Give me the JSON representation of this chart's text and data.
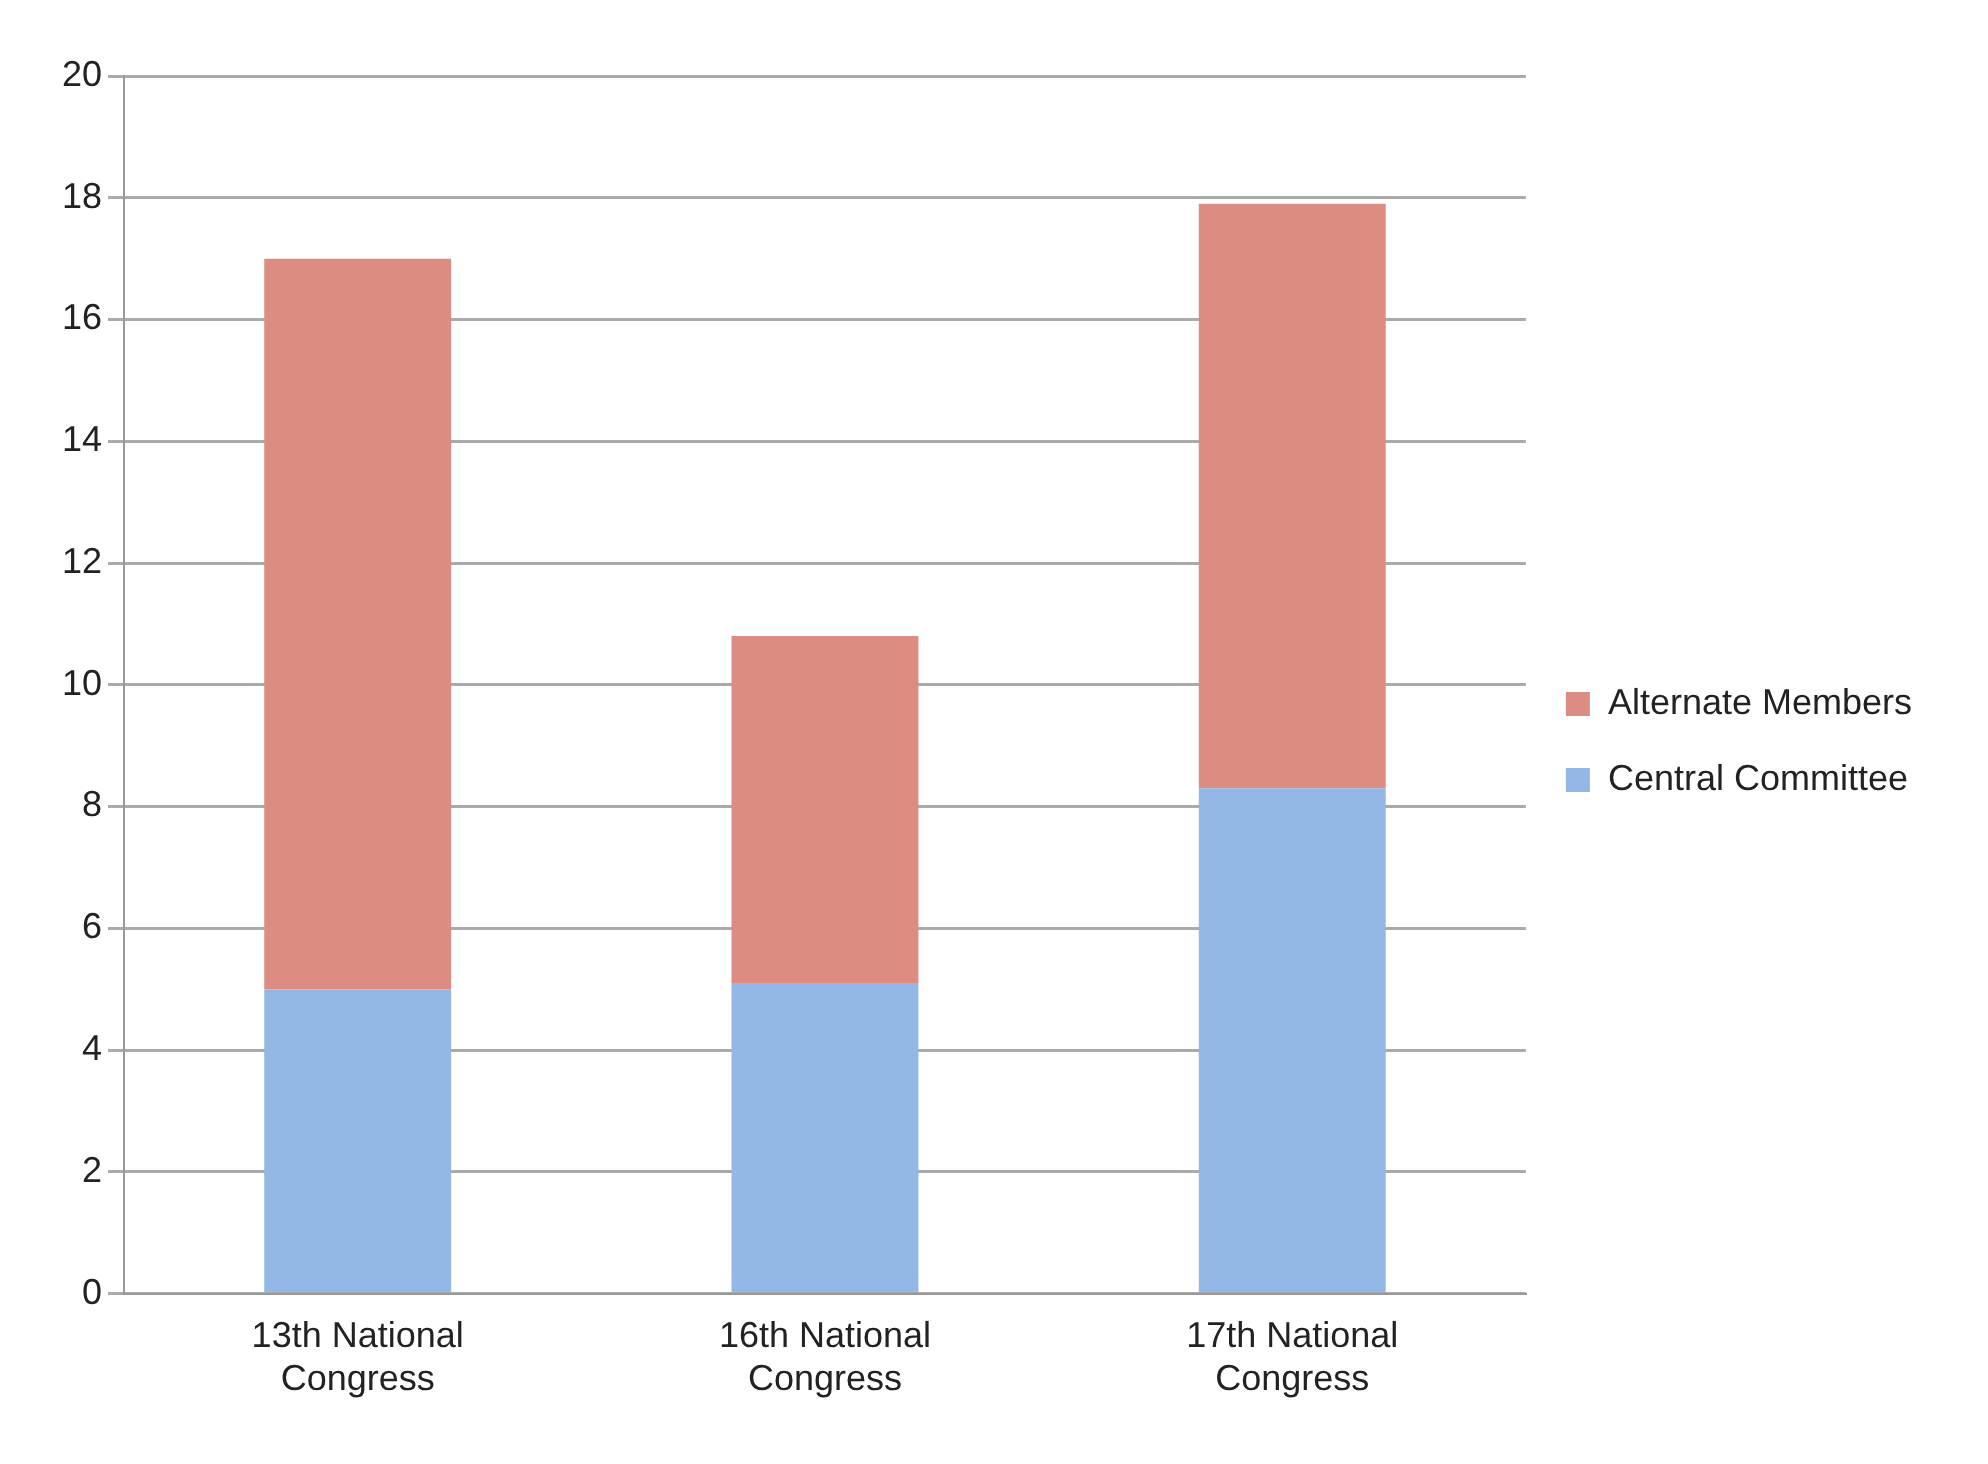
{
  "chart_data": {
    "type": "bar",
    "stacked": true,
    "categories": [
      "13th National Congress",
      "16th National Congress",
      "17th National Congress"
    ],
    "series": [
      {
        "name": "Central Committee",
        "color": "#94b8e6",
        "values": [
          5,
          5.1,
          8.3
        ]
      },
      {
        "name": "Alternate Members",
        "color": "#dc8c81",
        "values": [
          12,
          5.7,
          9.6
        ]
      }
    ],
    "ylim": [
      0,
      20
    ],
    "yticks": [
      0,
      2,
      4,
      6,
      8,
      10,
      12,
      14,
      16,
      18,
      20
    ],
    "grid": "y",
    "legend": "right"
  }
}
